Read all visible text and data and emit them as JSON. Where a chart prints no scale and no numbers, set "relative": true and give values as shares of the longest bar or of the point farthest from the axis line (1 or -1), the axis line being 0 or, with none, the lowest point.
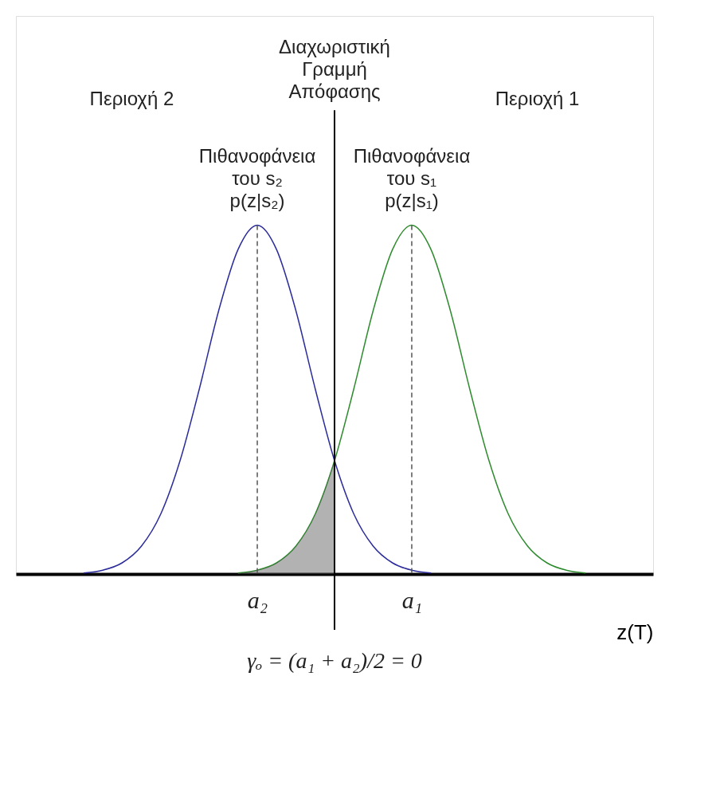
{
  "chart_data": {
    "type": "line",
    "relative": true,
    "xlabel": "z(T)",
    "categories": [
      null,
      null,
      null,
      null,
      null,
      null,
      null,
      null,
      null,
      null,
      null,
      null,
      "a₂",
      null,
      null,
      null,
      null,
      null,
      null,
      null,
      "a₁",
      null,
      null,
      null,
      null,
      null,
      null,
      null,
      null,
      null,
      null,
      null,
      null
    ],
    "tick_labels": "x",
    "grid": false,
    "legend": false,
    "marker": "none",
    "series": [
      {
        "name": "Πιθανοφάνεια\nτου s₂\np(z|s₂)",
        "color": "#2b2b9b",
        "values": [
          null,
          null,
          null,
          0.003,
          0.011,
          0.032,
          0.08,
          0.172,
          0.325,
          0.531,
          0.755,
          0.93,
          1,
          0.93,
          0.755,
          0.531,
          0.325,
          0.172,
          0.08,
          0.032,
          0.011,
          0.003,
          null,
          null,
          null,
          null,
          null,
          null,
          null,
          null,
          null,
          null,
          null
        ]
      },
      {
        "name": "Πιθανοφάνεια\nτου s₁\np(z|s₁)",
        "color": "#2e8b2e",
        "values": [
          null,
          null,
          null,
          null,
          null,
          null,
          null,
          null,
          null,
          null,
          null,
          0.003,
          0.011,
          0.032,
          0.08,
          0.172,
          0.325,
          0.531,
          0.755,
          0.93,
          1,
          0.93,
          0.755,
          0.531,
          0.325,
          0.172,
          0.08,
          0.032,
          0.011,
          0.003,
          null,
          null,
          null
        ]
      },
      {
        "type": "area",
        "color": "#555555",
        "values": [
          null,
          null,
          null,
          null,
          null,
          null,
          null,
          null,
          null,
          null,
          null,
          0.003,
          0.011,
          0.032,
          0.08,
          0.172,
          0.325,
          null,
          null,
          null,
          null,
          null,
          null,
          null,
          null,
          null,
          null,
          null,
          null,
          null,
          null,
          null,
          null
        ]
      }
    ],
    "ref_lines": [
      {
        "axis": "x",
        "label": "Διαχωριστική\nΓραμμή\nΑπόφασης",
        "color": "#000000"
      },
      {
        "axis": "x",
        "value": "a₂",
        "color": "#555555",
        "line_style": "dashed"
      },
      {
        "axis": "x",
        "value": "a₁",
        "color": "#555555",
        "line_style": "dashed"
      }
    ],
    "annotations": [
      "Περιοχή 2",
      "Περιοχή 1",
      "γₒ = (a₁ + a₂)/2 = 0"
    ]
  }
}
